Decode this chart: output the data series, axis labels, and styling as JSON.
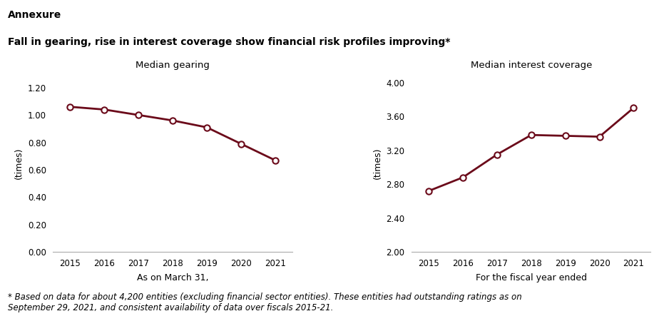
{
  "title_line1": "Annexure",
  "title_line2": "Fall in gearing, rise in interest coverage show financial risk profiles improving*",
  "footnote": "* Based on data for about 4,200 entities (excluding financial sector entities). These entities had outstanding ratings as on\nSeptember 29, 2021, and consistent availability of data over fiscals 2015-21.",
  "left_chart": {
    "title": "Median gearing",
    "xlabel": "As on March 31,",
    "ylabel": "(times)",
    "years": [
      2015,
      2016,
      2017,
      2018,
      2019,
      2020,
      2021
    ],
    "values": [
      1.06,
      1.04,
      1.0,
      0.96,
      0.91,
      0.79,
      0.67
    ],
    "ylim": [
      0.0,
      1.3
    ],
    "yticks": [
      0.0,
      0.2,
      0.4,
      0.6,
      0.8,
      1.0,
      1.2
    ]
  },
  "right_chart": {
    "title": "Median interest coverage",
    "xlabel": "For the fiscal year ended",
    "ylabel": "(times)",
    "years": [
      2015,
      2016,
      2017,
      2018,
      2019,
      2020,
      2021
    ],
    "values": [
      2.72,
      2.88,
      3.15,
      3.38,
      3.37,
      3.36,
      3.7
    ],
    "ylim": [
      2.0,
      4.1
    ],
    "yticks": [
      2.0,
      2.4,
      2.8,
      3.2,
      3.6,
      4.0
    ]
  },
  "line_color": "#6B0A1A",
  "marker_style": "o",
  "marker_facecolor": "white",
  "marker_edgecolor": "#6B0A1A",
  "marker_size": 6,
  "line_width": 2.0,
  "title_fontsize": 10,
  "subtitle_fontsize": 10,
  "axis_title_fontsize": 9.5,
  "tick_fontsize": 8.5,
  "footnote_fontsize": 8.5,
  "xlabel_fontsize": 9,
  "ylabel_fontsize": 9,
  "background_color": "#ffffff"
}
